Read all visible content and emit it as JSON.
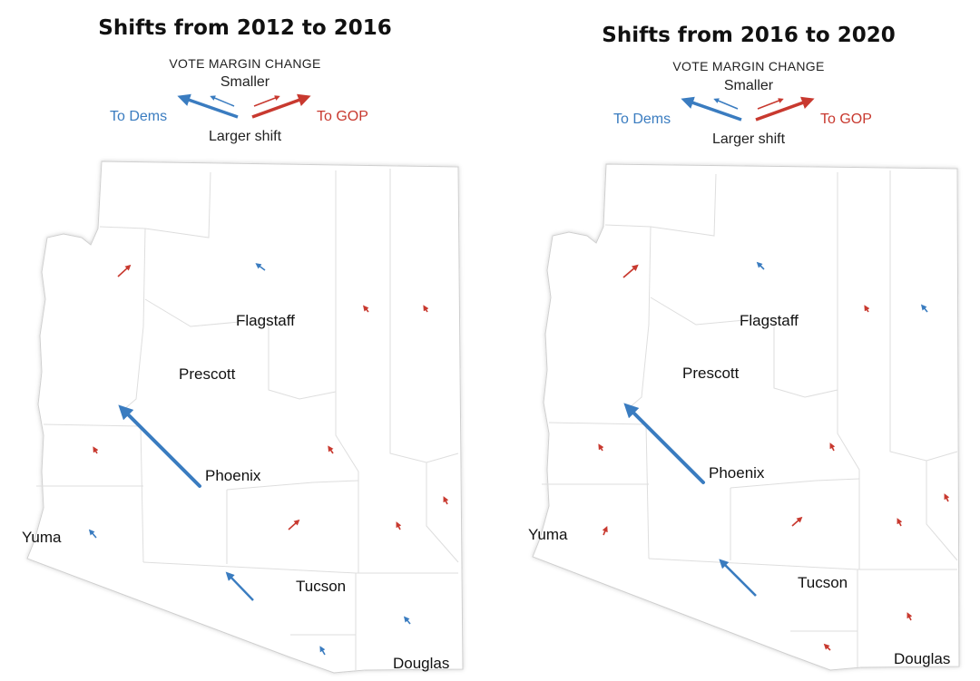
{
  "maps": [
    {
      "title": "Shifts from 2012 to 2016",
      "legend": {
        "heading": "VOTE MARGIN CHANGE",
        "smaller": "Smaller",
        "larger": "Larger shift",
        "to_dems": "To Dems",
        "to_gop": "To GOP"
      },
      "cities": [
        "Flagstaff",
        "Prescott",
        "Phoenix",
        "Yuma",
        "Tucson",
        "Douglas"
      ]
    },
    {
      "title": "Shifts from 2016 to 2020",
      "legend": {
        "heading": "VOTE MARGIN CHANGE",
        "smaller": "Smaller",
        "larger": "Larger shift",
        "to_dems": "To Dems",
        "to_gop": "To GOP"
      },
      "cities": [
        "Flagstaff",
        "Prescott",
        "Phoenix",
        "Yuma",
        "Tucson",
        "Douglas"
      ]
    }
  ],
  "colors": {
    "dem": "#3a7cc0",
    "gop": "#c8392f",
    "border": "#d8d8d8",
    "outline": "#cfcfcf"
  }
}
